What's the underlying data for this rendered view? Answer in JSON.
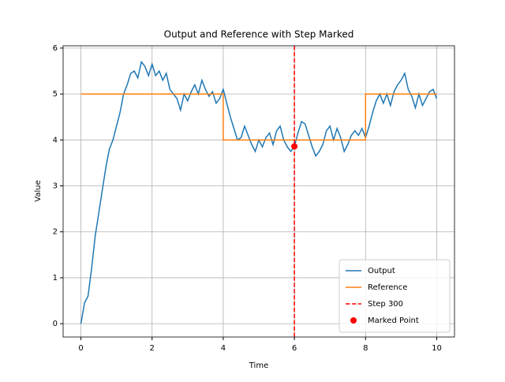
{
  "chart_data": {
    "type": "line",
    "title": "Output and Reference with Step Marked",
    "x_label": "Time",
    "y_label": "Value",
    "xlim": [
      -0.5,
      10.5
    ],
    "ylim": [
      -0.29,
      6.05
    ],
    "xticks": [
      0,
      2,
      4,
      6,
      8,
      10
    ],
    "yticks": [
      0,
      1,
      2,
      3,
      4,
      5,
      6
    ],
    "grid": true,
    "legend": "lower right",
    "series": [
      {
        "name": "Output",
        "color": "#1f77b4",
        "kind": "line",
        "x": [
          0,
          0.1,
          0.2,
          0.3,
          0.4,
          0.5,
          0.6,
          0.7,
          0.8,
          0.9,
          1,
          1.1,
          1.2,
          1.3,
          1.4,
          1.5,
          1.6,
          1.7,
          1.8,
          1.9,
          2,
          2.1,
          2.2,
          2.3,
          2.4,
          2.5,
          2.6,
          2.7,
          2.8,
          2.9,
          3,
          3.1,
          3.2,
          3.3,
          3.4,
          3.5,
          3.6,
          3.7,
          3.8,
          3.9,
          4,
          4.1,
          4.2,
          4.3,
          4.4,
          4.5,
          4.6,
          4.7,
          4.8,
          4.9,
          5,
          5.1,
          5.2,
          5.3,
          5.4,
          5.5,
          5.6,
          5.7,
          5.8,
          5.9,
          6,
          6.1,
          6.2,
          6.3,
          6.4,
          6.5,
          6.6,
          6.7,
          6.8,
          6.9,
          7,
          7.1,
          7.2,
          7.3,
          7.4,
          7.5,
          7.6,
          7.7,
          7.8,
          7.9,
          8,
          8.1,
          8.2,
          8.3,
          8.4,
          8.5,
          8.6,
          8.7,
          8.8,
          8.9,
          9,
          9.1,
          9.2,
          9.3,
          9.4,
          9.5,
          9.6,
          9.7,
          9.8,
          9.9,
          10
        ],
        "values": [
          0,
          0.45,
          0.6,
          1.2,
          1.9,
          2.4,
          2.9,
          3.4,
          3.8,
          4.0,
          4.3,
          4.6,
          5.0,
          5.2,
          5.45,
          5.5,
          5.35,
          5.7,
          5.6,
          5.4,
          5.65,
          5.4,
          5.5,
          5.3,
          5.45,
          5.1,
          5.0,
          4.9,
          4.65,
          5.0,
          4.85,
          5.05,
          5.2,
          5.0,
          5.3,
          5.1,
          4.95,
          5.05,
          4.8,
          4.9,
          5.1,
          4.8,
          4.5,
          4.25,
          4.0,
          4.05,
          4.3,
          4.1,
          3.9,
          3.75,
          4.0,
          3.85,
          4.05,
          4.15,
          3.9,
          4.2,
          4.3,
          4.0,
          3.85,
          3.75,
          3.86,
          4.15,
          4.4,
          4.35,
          4.1,
          3.85,
          3.65,
          3.75,
          3.9,
          4.2,
          4.3,
          4.0,
          4.25,
          4.05,
          3.75,
          3.9,
          4.1,
          4.2,
          4.1,
          4.25,
          4.05,
          4.3,
          4.6,
          4.85,
          5.0,
          4.8,
          5.0,
          4.75,
          5.05,
          5.2,
          5.3,
          5.45,
          5.1,
          4.95,
          4.7,
          5.0,
          4.75,
          4.9,
          5.05,
          5.1,
          4.9
        ]
      },
      {
        "name": "Reference",
        "color": "#ff7f0e",
        "kind": "line",
        "x": [
          0,
          4,
          4,
          8,
          8,
          10
        ],
        "values": [
          5,
          5,
          4,
          4,
          5,
          5
        ]
      },
      {
        "name": "Step 300",
        "color": "#ff0000",
        "kind": "vline",
        "x": [
          6
        ]
      },
      {
        "name": "Marked Point",
        "color": "#ff0000",
        "kind": "scatter",
        "x": [
          6
        ],
        "values": [
          3.86
        ]
      }
    ]
  }
}
